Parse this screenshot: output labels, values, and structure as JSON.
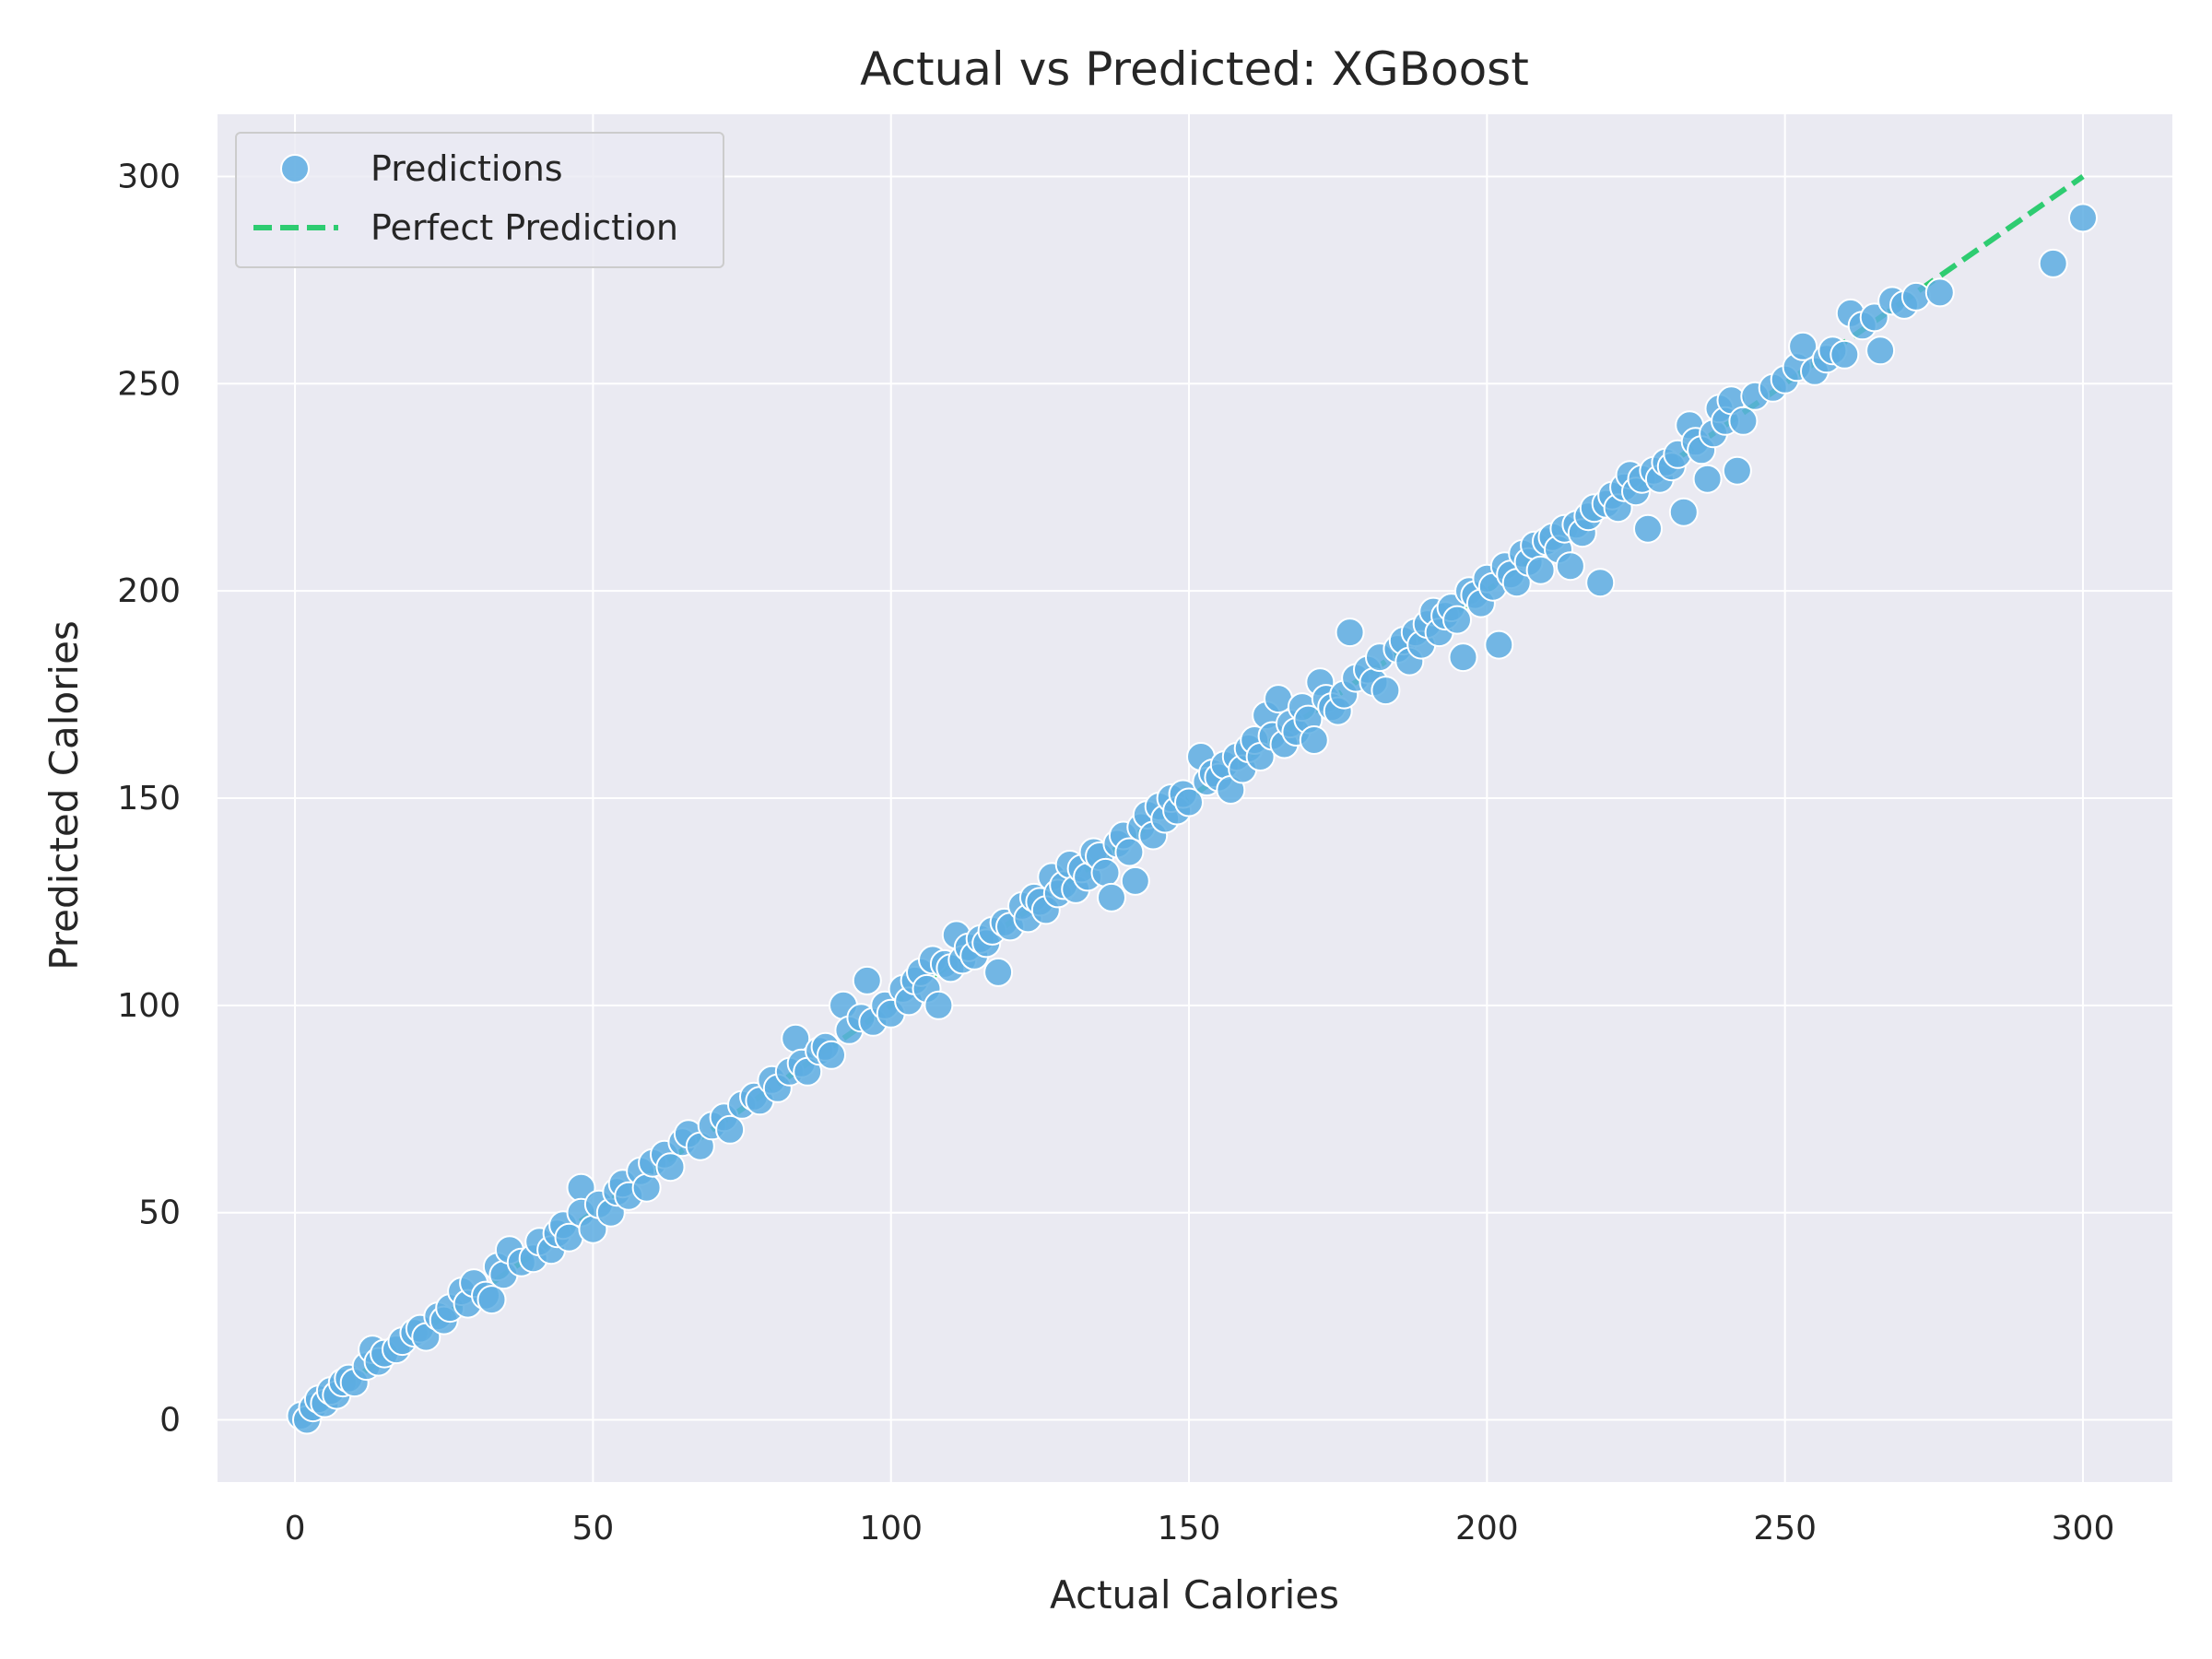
{
  "chart_data": {
    "type": "scatter",
    "title": "Actual vs Predicted: XGBoost",
    "xlabel": "Actual Calories",
    "ylabel": "Predicted Calories",
    "xlim": [
      -13,
      315
    ],
    "ylim": [
      -15,
      315
    ],
    "xticks": [
      0,
      50,
      100,
      150,
      200,
      250,
      300
    ],
    "yticks": [
      0,
      50,
      100,
      150,
      200,
      250,
      300
    ],
    "grid": true,
    "legend": {
      "placement": "top-left",
      "entries": [
        "Predictions",
        "Perfect Prediction"
      ]
    },
    "colors": {
      "background": "#eaeaf2",
      "points": "#5dade2",
      "point_edge": "#ffffff",
      "reference_line": "#2ecc71",
      "grid": "#ffffff"
    },
    "series": [
      {
        "name": "Predictions",
        "kind": "scatter",
        "points": [
          [
            1,
            1
          ],
          [
            2,
            0
          ],
          [
            3,
            3
          ],
          [
            4,
            5
          ],
          [
            5,
            4
          ],
          [
            6,
            7
          ],
          [
            7,
            6
          ],
          [
            8,
            9
          ],
          [
            9,
            10
          ],
          [
            10,
            9
          ],
          [
            12,
            13
          ],
          [
            13,
            17
          ],
          [
            14,
            14
          ],
          [
            15,
            16
          ],
          [
            17,
            17
          ],
          [
            18,
            19
          ],
          [
            20,
            21
          ],
          [
            21,
            22
          ],
          [
            22,
            20
          ],
          [
            24,
            25
          ],
          [
            25,
            24
          ],
          [
            26,
            27
          ],
          [
            28,
            31
          ],
          [
            29,
            28
          ],
          [
            30,
            33
          ],
          [
            32,
            30
          ],
          [
            33,
            29
          ],
          [
            34,
            37
          ],
          [
            35,
            35
          ],
          [
            36,
            41
          ],
          [
            38,
            38
          ],
          [
            40,
            39
          ],
          [
            41,
            43
          ],
          [
            43,
            41
          ],
          [
            44,
            45
          ],
          [
            45,
            47
          ],
          [
            46,
            44
          ],
          [
            48,
            56
          ],
          [
            48,
            50
          ],
          [
            50,
            46
          ],
          [
            51,
            52
          ],
          [
            53,
            50
          ],
          [
            54,
            55
          ],
          [
            55,
            57
          ],
          [
            56,
            54
          ],
          [
            58,
            60
          ],
          [
            59,
            56
          ],
          [
            60,
            62
          ],
          [
            62,
            64
          ],
          [
            63,
            61
          ],
          [
            65,
            67
          ],
          [
            66,
            69
          ],
          [
            68,
            66
          ],
          [
            70,
            71
          ],
          [
            72,
            73
          ],
          [
            73,
            70
          ],
          [
            75,
            76
          ],
          [
            77,
            78
          ],
          [
            78,
            77
          ],
          [
            80,
            82
          ],
          [
            81,
            80
          ],
          [
            83,
            84
          ],
          [
            84,
            92
          ],
          [
            85,
            86
          ],
          [
            86,
            84
          ],
          [
            88,
            89
          ],
          [
            89,
            90
          ],
          [
            90,
            88
          ],
          [
            92,
            100
          ],
          [
            93,
            94
          ],
          [
            95,
            97
          ],
          [
            96,
            106
          ],
          [
            97,
            96
          ],
          [
            99,
            100
          ],
          [
            100,
            98
          ],
          [
            102,
            104
          ],
          [
            103,
            101
          ],
          [
            104,
            106
          ],
          [
            105,
            108
          ],
          [
            106,
            104
          ],
          [
            107,
            111
          ],
          [
            108,
            100
          ],
          [
            109,
            110
          ],
          [
            110,
            109
          ],
          [
            111,
            117
          ],
          [
            112,
            111
          ],
          [
            113,
            114
          ],
          [
            114,
            112
          ],
          [
            115,
            116
          ],
          [
            116,
            115
          ],
          [
            117,
            118
          ],
          [
            118,
            108
          ],
          [
            119,
            120
          ],
          [
            120,
            119
          ],
          [
            122,
            124
          ],
          [
            123,
            121
          ],
          [
            124,
            126
          ],
          [
            125,
            125
          ],
          [
            126,
            123
          ],
          [
            127,
            131
          ],
          [
            128,
            127
          ],
          [
            129,
            129
          ],
          [
            130,
            134
          ],
          [
            131,
            128
          ],
          [
            132,
            133
          ],
          [
            133,
            131
          ],
          [
            134,
            137
          ],
          [
            135,
            136
          ],
          [
            136,
            132
          ],
          [
            137,
            126
          ],
          [
            138,
            139
          ],
          [
            139,
            141
          ],
          [
            140,
            137
          ],
          [
            141,
            130
          ],
          [
            142,
            143
          ],
          [
            143,
            146
          ],
          [
            144,
            141
          ],
          [
            145,
            148
          ],
          [
            146,
            145
          ],
          [
            147,
            150
          ],
          [
            148,
            147
          ],
          [
            149,
            151
          ],
          [
            150,
            149
          ],
          [
            152,
            160
          ],
          [
            153,
            154
          ],
          [
            154,
            156
          ],
          [
            155,
            155
          ],
          [
            156,
            158
          ],
          [
            157,
            152
          ],
          [
            158,
            160
          ],
          [
            159,
            157
          ],
          [
            160,
            162
          ],
          [
            161,
            164
          ],
          [
            162,
            160
          ],
          [
            163,
            170
          ],
          [
            164,
            165
          ],
          [
            165,
            174
          ],
          [
            166,
            163
          ],
          [
            167,
            168
          ],
          [
            168,
            166
          ],
          [
            169,
            172
          ],
          [
            170,
            169
          ],
          [
            171,
            164
          ],
          [
            172,
            178
          ],
          [
            173,
            174
          ],
          [
            174,
            172
          ],
          [
            175,
            171
          ],
          [
            176,
            175
          ],
          [
            177,
            190
          ],
          [
            178,
            179
          ],
          [
            180,
            181
          ],
          [
            181,
            178
          ],
          [
            182,
            184
          ],
          [
            183,
            176
          ],
          [
            185,
            186
          ],
          [
            186,
            188
          ],
          [
            187,
            183
          ],
          [
            188,
            190
          ],
          [
            189,
            187
          ],
          [
            190,
            192
          ],
          [
            191,
            195
          ],
          [
            192,
            190
          ],
          [
            193,
            194
          ],
          [
            194,
            196
          ],
          [
            195,
            193
          ],
          [
            196,
            184
          ],
          [
            197,
            200
          ],
          [
            198,
            199
          ],
          [
            199,
            197
          ],
          [
            200,
            203
          ],
          [
            201,
            201
          ],
          [
            202,
            187
          ],
          [
            203,
            206
          ],
          [
            204,
            204
          ],
          [
            205,
            202
          ],
          [
            206,
            209
          ],
          [
            207,
            207
          ],
          [
            208,
            211
          ],
          [
            209,
            205
          ],
          [
            210,
            212
          ],
          [
            211,
            213
          ],
          [
            212,
            210
          ],
          [
            213,
            215
          ],
          [
            214,
            206
          ],
          [
            215,
            216
          ],
          [
            216,
            214
          ],
          [
            217,
            218
          ],
          [
            218,
            220
          ],
          [
            219,
            202
          ],
          [
            220,
            221
          ],
          [
            221,
            223
          ],
          [
            222,
            220
          ],
          [
            223,
            225
          ],
          [
            224,
            228
          ],
          [
            225,
            224
          ],
          [
            226,
            227
          ],
          [
            227,
            215
          ],
          [
            228,
            229
          ],
          [
            229,
            227
          ],
          [
            230,
            231
          ],
          [
            231,
            230
          ],
          [
            232,
            233
          ],
          [
            233,
            219
          ],
          [
            234,
            240
          ],
          [
            235,
            236
          ],
          [
            236,
            234
          ],
          [
            237,
            227
          ],
          [
            238,
            238
          ],
          [
            239,
            244
          ],
          [
            240,
            241
          ],
          [
            241,
            246
          ],
          [
            242,
            229
          ],
          [
            243,
            241
          ],
          [
            245,
            247
          ],
          [
            248,
            249
          ],
          [
            250,
            251
          ],
          [
            252,
            254
          ],
          [
            253,
            259
          ],
          [
            255,
            253
          ],
          [
            257,
            256
          ],
          [
            258,
            258
          ],
          [
            260,
            257
          ],
          [
            261,
            267
          ],
          [
            263,
            264
          ],
          [
            265,
            266
          ],
          [
            266,
            258
          ],
          [
            268,
            270
          ],
          [
            270,
            269
          ],
          [
            272,
            271
          ],
          [
            276,
            272
          ],
          [
            295,
            279
          ],
          [
            300,
            290
          ]
        ]
      },
      {
        "name": "Perfect Prediction",
        "kind": "line",
        "points": [
          [
            0,
            0
          ],
          [
            300,
            300
          ]
        ]
      }
    ]
  }
}
